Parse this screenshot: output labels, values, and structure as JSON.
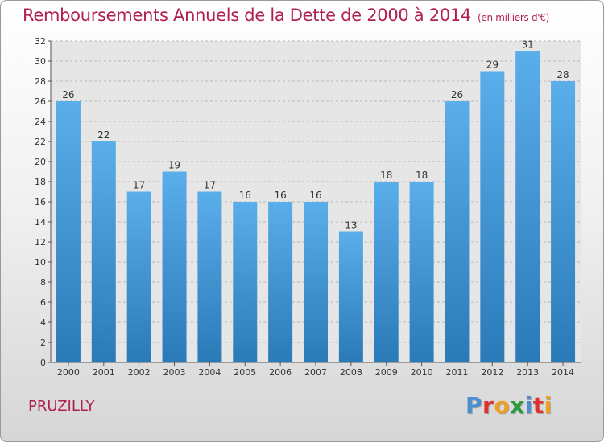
{
  "header": {
    "title": "Remboursements Annuels de la Dette de 2000 à 2014",
    "unit": "(en milliers d'€)"
  },
  "footer": {
    "commune": "PRUZILLY",
    "logo_letters": [
      "P",
      "r",
      "o",
      "x",
      "i",
      "t",
      "i"
    ],
    "logo_colors": [
      "#4a8fd0",
      "#e03030",
      "#f0a020",
      "#2a9a3a",
      "#4a8fd0",
      "#e03030",
      "#f0a020"
    ]
  },
  "chart_data": {
    "type": "bar",
    "title": "Remboursements Annuels de la Dette de 2000 à 2014",
    "xlabel": "",
    "ylabel": "",
    "categories": [
      "2000",
      "2001",
      "2002",
      "2003",
      "2004",
      "2005",
      "2006",
      "2007",
      "2008",
      "2009",
      "2010",
      "2011",
      "2012",
      "2013",
      "2014"
    ],
    "values": [
      26,
      22,
      17,
      19,
      17,
      16,
      16,
      16,
      13,
      18,
      18,
      26,
      29,
      31,
      28
    ],
    "ylim": [
      0,
      32
    ],
    "yticks": [
      0,
      2,
      4,
      6,
      8,
      10,
      12,
      14,
      16,
      18,
      20,
      22,
      24,
      26,
      28,
      30,
      32
    ],
    "grid": true,
    "bar_color_top": "#5aaeea",
    "bar_color_bottom": "#2a7ab8"
  }
}
